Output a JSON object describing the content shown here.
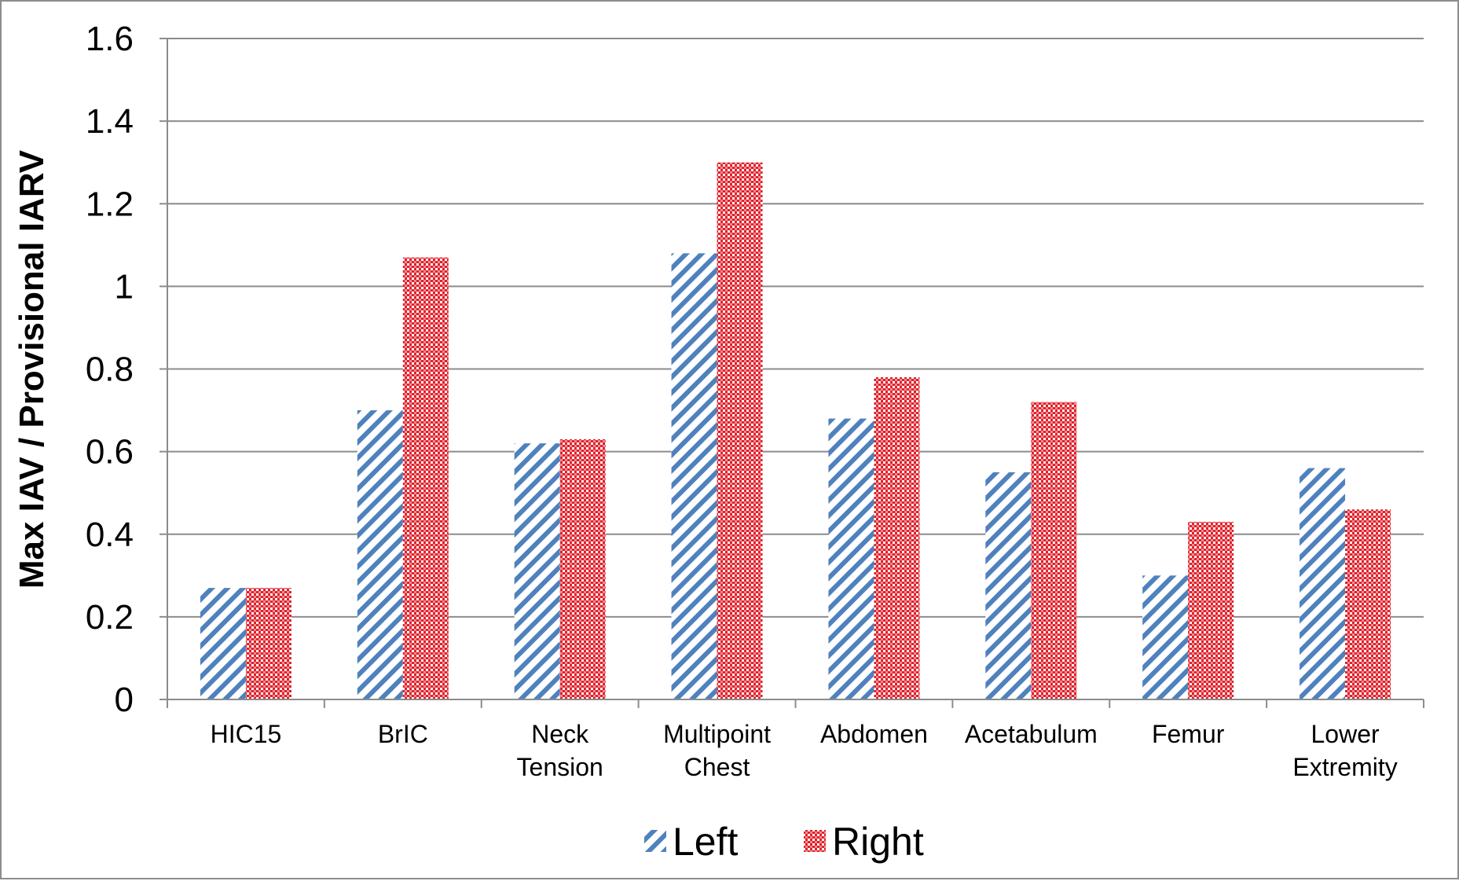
{
  "chart_data": {
    "type": "bar",
    "title": "",
    "xlabel": "",
    "ylabel": "Max IAV / Provisional IARV",
    "ylim": [
      0,
      1.6
    ],
    "yticks": [
      "0",
      "0.2",
      "0.4",
      "0.6",
      "0.8",
      "1",
      "1.2",
      "1.4",
      "1.6"
    ],
    "categories": [
      [
        "HIC15"
      ],
      [
        "BrIC"
      ],
      [
        "Neck",
        "Tension"
      ],
      [
        "Multipoint",
        "Chest"
      ],
      [
        "Abdomen"
      ],
      [
        "Acetabulum"
      ],
      [
        "Femur"
      ],
      [
        "Lower",
        "Extremity"
      ]
    ],
    "series": [
      {
        "name": "Left",
        "color": "#4f81bd",
        "pattern": "diagonal-stripes",
        "values": [
          0.27,
          0.7,
          0.62,
          1.08,
          0.68,
          0.55,
          0.3,
          0.56
        ]
      },
      {
        "name": "Right",
        "color": "#e0202a",
        "pattern": "checkerboard",
        "values": [
          0.27,
          1.07,
          0.63,
          1.3,
          0.78,
          0.72,
          0.43,
          0.46
        ]
      }
    ],
    "grid": true,
    "legend": "bottom"
  }
}
